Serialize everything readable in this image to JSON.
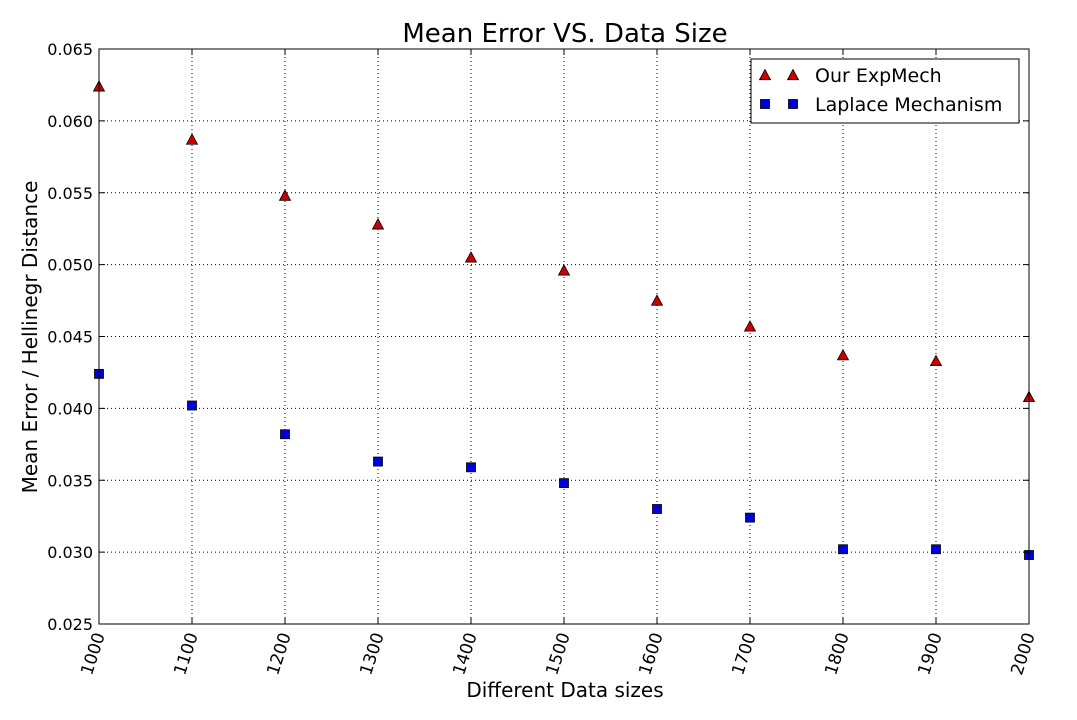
{
  "chart_data": {
    "type": "scatter",
    "title": "Mean Error VS. Data Size",
    "xlabel": "Different Data sizes",
    "ylabel": "Mean Error / Hellinegr Distance",
    "xlim": [
      1000,
      2000
    ],
    "ylim": [
      0.025,
      0.065
    ],
    "x_ticks": [
      "1000",
      "1100",
      "1200",
      "1300",
      "1400",
      "1500",
      "1600",
      "1700",
      "1800",
      "1900",
      "2000"
    ],
    "y_ticks": [
      "0.025",
      "0.030",
      "0.035",
      "0.040",
      "0.045",
      "0.050",
      "0.055",
      "0.060",
      "0.065"
    ],
    "grid": true,
    "legend_position": "top-right",
    "x": [
      1000,
      1100,
      1200,
      1300,
      1400,
      1500,
      1600,
      1700,
      1800,
      1900,
      2000
    ],
    "series": [
      {
        "name": "Our ExpMech",
        "marker": "triangle",
        "color": "#cc0000",
        "values": [
          0.0624,
          0.0587,
          0.0548,
          0.0528,
          0.0505,
          0.0496,
          0.0475,
          0.0457,
          0.0437,
          0.0433,
          0.0408
        ]
      },
      {
        "name": "Laplace Mechanism",
        "marker": "square",
        "color": "#0000dd",
        "values": [
          0.0424,
          0.0402,
          0.0382,
          0.0363,
          0.0359,
          0.0348,
          0.033,
          0.0324,
          0.0302,
          0.0302,
          0.0298
        ]
      }
    ]
  }
}
